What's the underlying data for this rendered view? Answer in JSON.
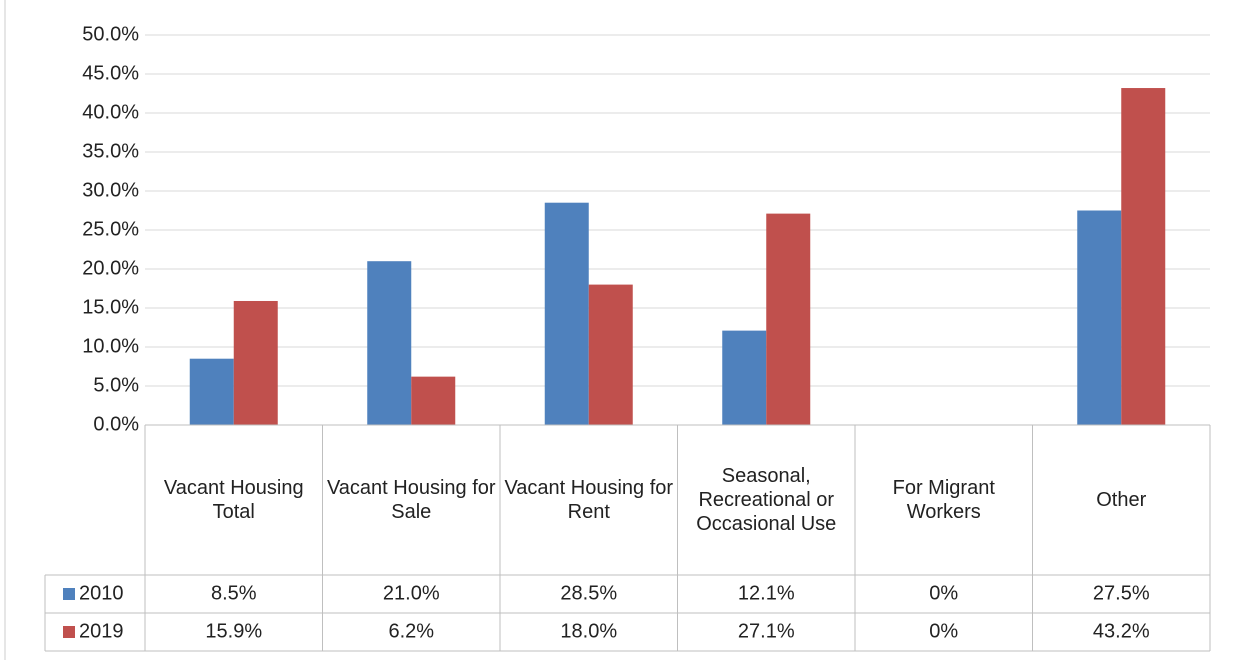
{
  "chart_data": {
    "type": "bar",
    "categories": [
      "Vacant Housing Total",
      "Vacant Housing for Sale",
      "Vacant Housing for Rent",
      "Seasonal, Recreational or Occasional Use",
      "For Migrant Workers",
      "Other"
    ],
    "series": [
      {
        "name": "2010",
        "color": "#4f81bd",
        "values": [
          8.5,
          21.0,
          28.5,
          12.1,
          0,
          27.5
        ],
        "value_labels": [
          "8.5%",
          "21.0%",
          "28.5%",
          "12.1%",
          "0%",
          "27.5%"
        ]
      },
      {
        "name": "2019",
        "color": "#c0504d",
        "values": [
          15.9,
          6.2,
          18.0,
          27.1,
          0,
          43.2
        ],
        "value_labels": [
          "15.9%",
          "6.2%",
          "18.0%",
          "27.1%",
          "0%",
          "43.2%"
        ]
      }
    ],
    "ylim": [
      0,
      50
    ],
    "yticks": [
      {
        "value": 0,
        "label": "0.0%"
      },
      {
        "value": 5,
        "label": "5.0%"
      },
      {
        "value": 10,
        "label": "10.0%"
      },
      {
        "value": 15,
        "label": "15.0%"
      },
      {
        "value": 20,
        "label": "20.0%"
      },
      {
        "value": 25,
        "label": "25.0%"
      },
      {
        "value": 30,
        "label": "30.0%"
      },
      {
        "value": 35,
        "label": "35.0%"
      },
      {
        "value": 40,
        "label": "40.0%"
      },
      {
        "value": 45,
        "label": "45.0%"
      },
      {
        "value": 50,
        "label": "50.0%"
      }
    ],
    "grid": true
  }
}
